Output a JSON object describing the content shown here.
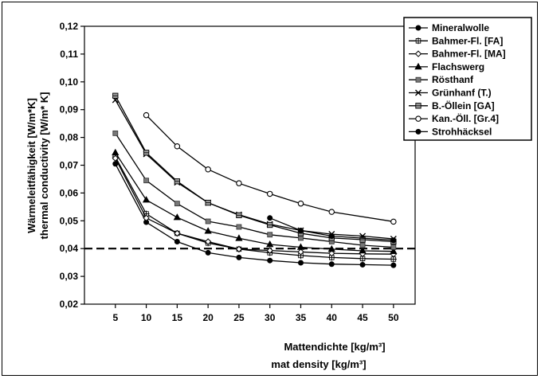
{
  "chart_data": {
    "type": "line",
    "title": "",
    "xlabel": [
      "Mattendichte  [kg/m³]",
      "mat density [kg/m³]"
    ],
    "ylabel": [
      "Wärmeleitfähigkeit [W/m*K]",
      "thermal conductivity [W/m* K]"
    ],
    "x_ticks": [
      5,
      10,
      15,
      20,
      25,
      30,
      35,
      40,
      45,
      50
    ],
    "xlim": [
      0,
      53.5
    ],
    "ylim": [
      0.02,
      0.12
    ],
    "y_ticks": [
      "0,02",
      "0,03",
      "0,04",
      "0,05",
      "0,06",
      "0,07",
      "0,08",
      "0,09",
      "0,10",
      "0,11",
      "0,12"
    ],
    "y_tick_values": [
      0.02,
      0.03,
      0.04,
      0.05,
      0.06,
      0.07,
      0.08,
      0.09,
      0.1,
      0.11,
      0.12
    ],
    "grid": "none",
    "legend_position": "top-right",
    "reference_line": {
      "y": 0.04,
      "style": "dashed"
    },
    "series": [
      {
        "name": "Mineralwolle",
        "marker": "circle-filled",
        "x": [
          5,
          10,
          15,
          20,
          25,
          30,
          35,
          40,
          45,
          50
        ],
        "values": [
          0.0705,
          0.0495,
          0.0425,
          0.0385,
          0.0368,
          0.0357,
          0.0349,
          0.0344,
          0.0342,
          0.034
        ]
      },
      {
        "name": "Bahmer-Fl. [FA]",
        "marker": "plus-square",
        "x": [
          5,
          10,
          15,
          20,
          25,
          30,
          35,
          40,
          45,
          50
        ],
        "values": [
          0.073,
          0.0525,
          0.0455,
          0.042,
          0.0398,
          0.0385,
          0.0375,
          0.0368,
          0.0364,
          0.0362
        ]
      },
      {
        "name": "Bahmer-Fl. [MA]",
        "marker": "diamond",
        "x": [
          5,
          10,
          15,
          20,
          25,
          30,
          35,
          40,
          45,
          50
        ],
        "values": [
          0.0725,
          0.051,
          0.0455,
          0.0425,
          0.0398,
          0.0393,
          0.0388,
          0.0383,
          0.0381,
          0.038
        ]
      },
      {
        "name": "Flachswerg",
        "marker": "triangle-filled",
        "x": [
          5,
          10,
          15,
          20,
          25,
          30,
          35,
          40,
          45,
          50
        ],
        "values": [
          0.0745,
          0.0575,
          0.0512,
          0.0463,
          0.0437,
          0.0415,
          0.0405,
          0.0398,
          0.0392,
          0.039
        ]
      },
      {
        "name": "Rösthanf",
        "marker": "square-filled",
        "x": [
          5,
          10,
          15,
          20,
          25,
          30,
          35,
          40,
          45,
          50
        ],
        "values": [
          0.0815,
          0.0645,
          0.0562,
          0.0498,
          0.0478,
          0.045,
          0.0438,
          0.0425,
          0.0412,
          0.0405
        ]
      },
      {
        "name": "Grünhanf (T.)",
        "marker": "x",
        "x": [
          5,
          10,
          15,
          20,
          25,
          30,
          35,
          40,
          45,
          50
        ],
        "values": [
          0.0935,
          0.074,
          0.0638,
          0.0565,
          0.0522,
          0.0488,
          0.0465,
          0.0452,
          0.0445,
          0.0435
        ]
      },
      {
        "name": "B.-Öllein [GA]",
        "marker": "square-crossed",
        "x": [
          5,
          10,
          15,
          20,
          25,
          30,
          35,
          40,
          45,
          50
        ],
        "values": [
          0.095,
          0.0745,
          0.0642,
          0.0565,
          0.052,
          0.0485,
          0.0455,
          0.0438,
          0.0432,
          0.0425
        ]
      },
      {
        "name": "Kan.-Öll. [Gr.4]",
        "marker": "circle-open",
        "x": [
          10,
          15,
          20,
          25,
          30,
          35,
          40,
          50
        ],
        "values": [
          0.088,
          0.0768,
          0.0685,
          0.0635,
          0.0597,
          0.0562,
          0.0532,
          0.0497
        ]
      },
      {
        "name": "Strohhäcksel",
        "marker": "circle-filled",
        "x": [
          30,
          35,
          40,
          50
        ],
        "values": [
          0.051,
          0.0465,
          0.0445,
          0.043
        ]
      }
    ]
  }
}
